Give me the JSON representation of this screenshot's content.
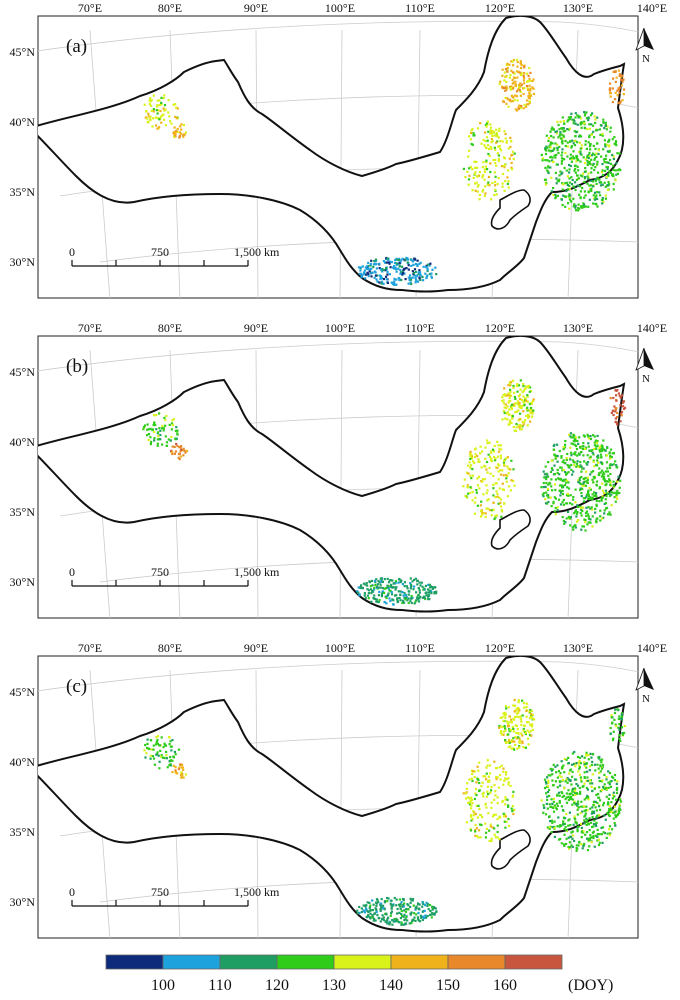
{
  "lon_labels": [
    "70°E",
    "80°E",
    "90°E",
    "100°E",
    "110°E",
    "120°E",
    "130°E",
    "140°E"
  ],
  "lat_labels": [
    "45°N",
    "40°N",
    "35°N",
    "30°N"
  ],
  "north_arrow_label": "N",
  "scale_bar": {
    "zero": "0",
    "mid": "750",
    "end": "1,500 km"
  },
  "panels": [
    {
      "id": "a",
      "label": "(a)"
    },
    {
      "id": "b",
      "label": "(b)"
    },
    {
      "id": "c",
      "label": "(c)"
    }
  ],
  "legend": {
    "unit": "(DOY)",
    "tick_labels": [
      "100",
      "110",
      "120",
      "130",
      "140",
      "150",
      "160"
    ],
    "colors": [
      "#0d2b7a",
      "#1ea2dd",
      "#1f9e63",
      "#2fcc1a",
      "#d9f21a",
      "#f0b21a",
      "#e8882a",
      "#c8553d"
    ]
  },
  "colors": {
    "frame": "#222222",
    "graticule": "#cccccc",
    "boundary": "#111111"
  }
}
